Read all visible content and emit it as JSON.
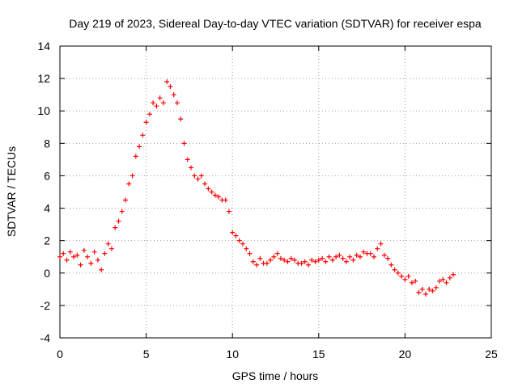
{
  "chart_data": {
    "type": "scatter",
    "title": "Day 219 of 2023, Sidereal Day-to-day VTEC variation (SDTVAR) for receiver espa",
    "xlabel": "GPS time / hours",
    "ylabel": "SDTVAR / TECUs",
    "xlim": [
      0,
      25
    ],
    "ylim": [
      -4,
      14
    ],
    "x_ticks": [
      0,
      5,
      10,
      15,
      20,
      25
    ],
    "y_ticks": [
      -4,
      -2,
      0,
      2,
      4,
      6,
      8,
      10,
      12,
      14
    ],
    "x_tick_labels": [
      "0",
      "5",
      "10",
      "15",
      "20",
      "25"
    ],
    "y_tick_labels": [
      "-4",
      "-2",
      "0",
      "2",
      "4",
      "6",
      "8",
      "10",
      "12",
      "14"
    ],
    "grid": true,
    "marker": "+",
    "color": "#ff0000",
    "series": [
      {
        "name": "SDTVAR",
        "x": [
          0.0,
          0.2,
          0.4,
          0.6,
          0.8,
          1.0,
          1.2,
          1.4,
          1.6,
          1.8,
          2.0,
          2.2,
          2.4,
          2.6,
          2.8,
          3.0,
          3.2,
          3.4,
          3.6,
          3.8,
          4.0,
          4.2,
          4.4,
          4.6,
          4.8,
          5.0,
          5.2,
          5.4,
          5.6,
          5.8,
          6.0,
          6.2,
          6.4,
          6.6,
          6.8,
          7.0,
          7.2,
          7.4,
          7.6,
          7.8,
          8.0,
          8.2,
          8.4,
          8.6,
          8.8,
          9.0,
          9.2,
          9.4,
          9.6,
          9.8,
          10.0,
          10.2,
          10.4,
          10.6,
          10.8,
          11.0,
          11.2,
          11.4,
          11.6,
          11.8,
          12.0,
          12.2,
          12.4,
          12.6,
          12.8,
          13.0,
          13.2,
          13.4,
          13.6,
          13.8,
          14.0,
          14.2,
          14.4,
          14.6,
          14.8,
          15.0,
          15.2,
          15.4,
          15.6,
          15.8,
          16.0,
          16.2,
          16.4,
          16.6,
          16.8,
          17.0,
          17.2,
          17.4,
          17.6,
          17.8,
          18.0,
          18.2,
          18.4,
          18.6,
          18.8,
          19.0,
          19.2,
          19.4,
          19.6,
          19.8,
          20.0,
          20.2,
          20.4,
          20.6,
          20.8,
          21.0,
          21.2,
          21.4,
          21.6,
          21.8,
          22.0,
          22.2,
          22.4,
          22.6,
          22.8
        ],
        "y": [
          1.0,
          1.2,
          0.8,
          1.3,
          1.0,
          1.1,
          0.5,
          1.4,
          1.0,
          0.6,
          1.3,
          0.8,
          0.2,
          1.2,
          1.8,
          1.5,
          2.8,
          3.2,
          3.8,
          4.5,
          5.5,
          6.0,
          7.2,
          7.8,
          8.5,
          9.3,
          9.8,
          10.5,
          10.3,
          10.8,
          10.5,
          11.8,
          11.5,
          11.0,
          10.5,
          9.5,
          8.0,
          7.0,
          6.5,
          6.0,
          5.8,
          6.0,
          5.5,
          5.2,
          5.0,
          4.8,
          4.7,
          4.5,
          4.5,
          3.8,
          2.5,
          2.3,
          2.0,
          1.8,
          1.5,
          1.2,
          0.7,
          0.5,
          0.9,
          0.6,
          0.6,
          0.8,
          1.0,
          1.2,
          0.9,
          0.8,
          0.7,
          0.9,
          0.8,
          0.6,
          0.6,
          0.7,
          0.5,
          0.8,
          0.7,
          0.8,
          0.9,
          0.7,
          1.0,
          0.8,
          1.0,
          1.1,
          0.9,
          0.7,
          1.0,
          0.8,
          1.1,
          1.0,
          1.3,
          1.2,
          1.2,
          1.0,
          1.5,
          1.8,
          1.1,
          0.9,
          0.5,
          0.2,
          0.0,
          -0.2,
          -0.4,
          -0.2,
          -0.6,
          -0.5,
          -1.2,
          -1.0,
          -1.3,
          -1.0,
          -1.1,
          -0.9,
          -0.5,
          -0.4,
          -0.6,
          -0.3,
          -0.1
        ]
      }
    ]
  }
}
